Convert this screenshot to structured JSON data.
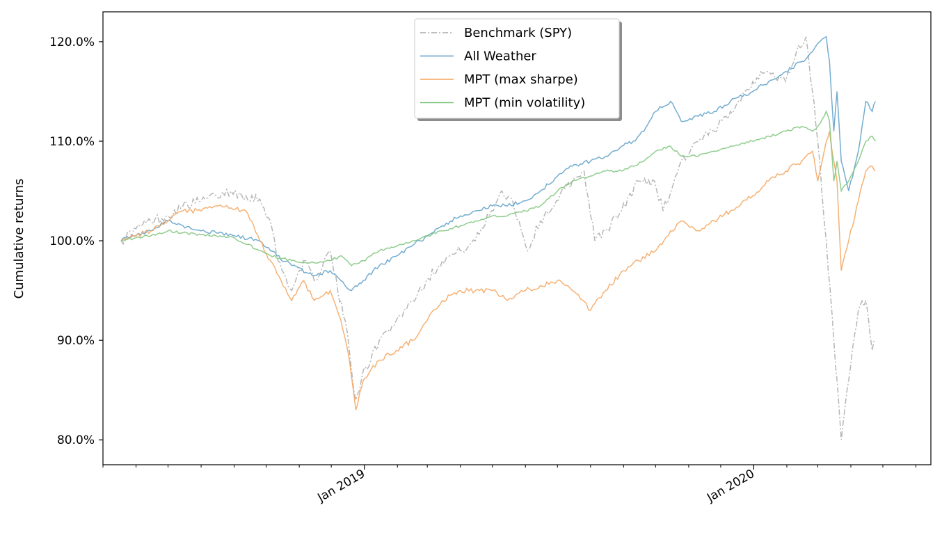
{
  "chart_data": {
    "type": "line",
    "title": "",
    "xlabel": "",
    "ylabel": "Cumulative returns",
    "ylim": [
      0.775,
      1.23
    ],
    "xlim": [
      "2018-05-01",
      "2020-06-15"
    ],
    "y_ticks": [
      0.8,
      0.9,
      1.0,
      1.1,
      1.2
    ],
    "y_tick_labels": [
      "80.0%",
      "90.0%",
      "100.0%",
      "110.0%",
      "120.0%"
    ],
    "x_ticks": [
      {
        "date": "2019-01-01",
        "label": "Jan 2019"
      },
      {
        "date": "2020-01-01",
        "label": "Jan 2020"
      }
    ],
    "x_minor_ticks": [
      "2018-05-01",
      "2018-06-01",
      "2018-07-01",
      "2018-08-01",
      "2018-09-01",
      "2018-10-01",
      "2018-11-01",
      "2018-12-01",
      "2019-02-01",
      "2019-03-01",
      "2019-04-01",
      "2019-05-01",
      "2019-06-01",
      "2019-07-01",
      "2019-08-01",
      "2019-09-01",
      "2019-10-01",
      "2019-11-01",
      "2019-12-01",
      "2020-02-01",
      "2020-03-01",
      "2020-04-01",
      "2020-05-01",
      "2020-06-01"
    ],
    "grid": false,
    "legend_position": "top-center",
    "series": [
      {
        "name": "Benchmark (SPY)",
        "color": "#a9a9a9",
        "style": "dashdot",
        "points": [
          [
            "2018-05-18",
            1.0
          ],
          [
            "2018-06-01",
            1.012
          ],
          [
            "2018-06-15",
            1.02
          ],
          [
            "2018-07-01",
            1.025
          ],
          [
            "2018-07-15",
            1.035
          ],
          [
            "2018-08-01",
            1.04
          ],
          [
            "2018-08-15",
            1.045
          ],
          [
            "2018-08-29",
            1.05
          ],
          [
            "2018-09-12",
            1.045
          ],
          [
            "2018-09-25",
            1.042
          ],
          [
            "2018-10-05",
            1.02
          ],
          [
            "2018-10-12",
            0.98
          ],
          [
            "2018-10-25",
            0.95
          ],
          [
            "2018-11-05",
            0.98
          ],
          [
            "2018-11-15",
            0.96
          ],
          [
            "2018-11-30",
            0.99
          ],
          [
            "2018-12-07",
            0.95
          ],
          [
            "2018-12-14",
            0.92
          ],
          [
            "2018-12-20",
            0.87
          ],
          [
            "2018-12-24",
            0.84
          ],
          [
            "2018-12-31",
            0.87
          ],
          [
            "2019-01-07",
            0.88
          ],
          [
            "2019-01-15",
            0.9
          ],
          [
            "2019-01-31",
            0.92
          ],
          [
            "2019-02-15",
            0.94
          ],
          [
            "2019-02-28",
            0.96
          ],
          [
            "2019-03-15",
            0.98
          ],
          [
            "2019-04-01",
            0.99
          ],
          [
            "2019-04-15",
            1.0
          ],
          [
            "2019-04-30",
            1.03
          ],
          [
            "2019-05-10",
            1.05
          ],
          [
            "2019-05-20",
            1.04
          ],
          [
            "2019-06-03",
            0.99
          ],
          [
            "2019-06-15",
            1.02
          ],
          [
            "2019-06-30",
            1.04
          ],
          [
            "2019-07-15",
            1.06
          ],
          [
            "2019-07-26",
            1.07
          ],
          [
            "2019-08-05",
            1.0
          ],
          [
            "2019-08-15",
            1.01
          ],
          [
            "2019-08-30",
            1.03
          ],
          [
            "2019-09-15",
            1.06
          ],
          [
            "2019-09-30",
            1.06
          ],
          [
            "2019-10-08",
            1.03
          ],
          [
            "2019-10-25",
            1.08
          ],
          [
            "2019-11-10",
            1.1
          ],
          [
            "2019-11-25",
            1.11
          ],
          [
            "2019-12-10",
            1.13
          ],
          [
            "2019-12-31",
            1.16
          ],
          [
            "2020-01-15",
            1.17
          ],
          [
            "2020-01-31",
            1.16
          ],
          [
            "2020-02-10",
            1.19
          ],
          [
            "2020-02-19",
            1.205
          ],
          [
            "2020-02-25",
            1.15
          ],
          [
            "2020-03-01",
            1.1
          ],
          [
            "2020-03-09",
            1.0
          ],
          [
            "2020-03-16",
            0.9
          ],
          [
            "2020-03-23",
            0.8
          ],
          [
            "2020-03-30",
            0.86
          ],
          [
            "2020-04-08",
            0.93
          ],
          [
            "2020-04-15",
            0.94
          ],
          [
            "2020-04-21",
            0.89
          ],
          [
            "2020-04-24",
            0.9
          ]
        ]
      },
      {
        "name": "All Weather",
        "color": "#5a9ec8",
        "style": "solid",
        "points": [
          [
            "2018-05-18",
            1.0
          ],
          [
            "2018-06-01",
            1.005
          ],
          [
            "2018-06-15",
            1.01
          ],
          [
            "2018-07-01",
            1.02
          ],
          [
            "2018-07-15",
            1.015
          ],
          [
            "2018-08-01",
            1.01
          ],
          [
            "2018-08-15",
            1.008
          ],
          [
            "2018-09-01",
            1.005
          ],
          [
            "2018-09-25",
            1.0
          ],
          [
            "2018-10-05",
            0.99
          ],
          [
            "2018-10-25",
            0.975
          ],
          [
            "2018-11-15",
            0.965
          ],
          [
            "2018-11-30",
            0.97
          ],
          [
            "2018-12-10",
            0.96
          ],
          [
            "2018-12-20",
            0.95
          ],
          [
            "2018-12-31",
            0.96
          ],
          [
            "2019-01-15",
            0.975
          ],
          [
            "2019-02-01",
            0.985
          ],
          [
            "2019-02-15",
            0.995
          ],
          [
            "2019-03-01",
            1.005
          ],
          [
            "2019-03-15",
            1.015
          ],
          [
            "2019-04-01",
            1.025
          ],
          [
            "2019-04-15",
            1.03
          ],
          [
            "2019-05-01",
            1.035
          ],
          [
            "2019-05-15",
            1.035
          ],
          [
            "2019-06-01",
            1.04
          ],
          [
            "2019-06-15",
            1.05
          ],
          [
            "2019-07-01",
            1.065
          ],
          [
            "2019-07-15",
            1.075
          ],
          [
            "2019-08-01",
            1.08
          ],
          [
            "2019-08-15",
            1.085
          ],
          [
            "2019-08-30",
            1.095
          ],
          [
            "2019-09-10",
            1.1
          ],
          [
            "2019-09-20",
            1.11
          ],
          [
            "2019-10-01",
            1.13
          ],
          [
            "2019-10-15",
            1.14
          ],
          [
            "2019-10-25",
            1.12
          ],
          [
            "2019-11-10",
            1.125
          ],
          [
            "2019-11-25",
            1.13
          ],
          [
            "2019-12-10",
            1.14
          ],
          [
            "2019-12-31",
            1.15
          ],
          [
            "2020-01-15",
            1.16
          ],
          [
            "2020-01-31",
            1.17
          ],
          [
            "2020-02-15",
            1.18
          ],
          [
            "2020-02-25",
            1.19
          ],
          [
            "2020-03-03",
            1.2
          ],
          [
            "2020-03-09",
            1.205
          ],
          [
            "2020-03-12",
            1.18
          ],
          [
            "2020-03-16",
            1.11
          ],
          [
            "2020-03-19",
            1.15
          ],
          [
            "2020-03-23",
            1.08
          ],
          [
            "2020-03-30",
            1.05
          ],
          [
            "2020-04-08",
            1.09
          ],
          [
            "2020-04-15",
            1.14
          ],
          [
            "2020-04-21",
            1.13
          ],
          [
            "2020-04-24",
            1.14
          ]
        ]
      },
      {
        "name": "MPT (max sharpe)",
        "color": "#f5a35a",
        "style": "solid",
        "points": [
          [
            "2018-05-18",
            1.0
          ],
          [
            "2018-06-01",
            1.005
          ],
          [
            "2018-06-15",
            1.01
          ],
          [
            "2018-07-01",
            1.02
          ],
          [
            "2018-07-15",
            1.03
          ],
          [
            "2018-08-01",
            1.03
          ],
          [
            "2018-08-15",
            1.035
          ],
          [
            "2018-08-29",
            1.033
          ],
          [
            "2018-09-12",
            1.03
          ],
          [
            "2018-09-25",
            1.0
          ],
          [
            "2018-10-05",
            0.98
          ],
          [
            "2018-10-15",
            0.96
          ],
          [
            "2018-10-25",
            0.94
          ],
          [
            "2018-11-05",
            0.96
          ],
          [
            "2018-11-15",
            0.94
          ],
          [
            "2018-11-30",
            0.95
          ],
          [
            "2018-12-10",
            0.92
          ],
          [
            "2018-12-18",
            0.88
          ],
          [
            "2018-12-24",
            0.83
          ],
          [
            "2018-12-31",
            0.86
          ],
          [
            "2019-01-07",
            0.87
          ],
          [
            "2019-01-15",
            0.88
          ],
          [
            "2019-01-31",
            0.89
          ],
          [
            "2019-02-15",
            0.9
          ],
          [
            "2019-03-01",
            0.92
          ],
          [
            "2019-03-15",
            0.94
          ],
          [
            "2019-04-01",
            0.95
          ],
          [
            "2019-04-15",
            0.95
          ],
          [
            "2019-05-01",
            0.95
          ],
          [
            "2019-05-15",
            0.94
          ],
          [
            "2019-06-01",
            0.95
          ],
          [
            "2019-06-15",
            0.955
          ],
          [
            "2019-07-01",
            0.96
          ],
          [
            "2019-07-15",
            0.95
          ],
          [
            "2019-08-01",
            0.93
          ],
          [
            "2019-08-15",
            0.95
          ],
          [
            "2019-09-01",
            0.97
          ],
          [
            "2019-09-15",
            0.98
          ],
          [
            "2019-10-01",
            0.99
          ],
          [
            "2019-10-15",
            1.01
          ],
          [
            "2019-10-25",
            1.02
          ],
          [
            "2019-11-10",
            1.01
          ],
          [
            "2019-11-25",
            1.02
          ],
          [
            "2019-12-10",
            1.03
          ],
          [
            "2019-12-31",
            1.045
          ],
          [
            "2020-01-15",
            1.06
          ],
          [
            "2020-01-31",
            1.07
          ],
          [
            "2020-02-15",
            1.08
          ],
          [
            "2020-02-25",
            1.09
          ],
          [
            "2020-03-01",
            1.06
          ],
          [
            "2020-03-09",
            1.1
          ],
          [
            "2020-03-12",
            1.11
          ],
          [
            "2020-03-16",
            1.08
          ],
          [
            "2020-03-19",
            1.06
          ],
          [
            "2020-03-23",
            0.97
          ],
          [
            "2020-03-30",
            1.0
          ],
          [
            "2020-04-08",
            1.04
          ],
          [
            "2020-04-15",
            1.07
          ],
          [
            "2020-04-21",
            1.075
          ],
          [
            "2020-04-24",
            1.07
          ]
        ]
      },
      {
        "name": "MPT (min volatility)",
        "color": "#7cc47a",
        "style": "solid",
        "points": [
          [
            "2018-05-18",
            1.0
          ],
          [
            "2018-06-01",
            1.003
          ],
          [
            "2018-06-15",
            1.005
          ],
          [
            "2018-07-01",
            1.01
          ],
          [
            "2018-07-15",
            1.008
          ],
          [
            "2018-08-01",
            1.006
          ],
          [
            "2018-08-15",
            1.005
          ],
          [
            "2018-09-01",
            1.003
          ],
          [
            "2018-09-25",
            0.99
          ],
          [
            "2018-10-05",
            0.985
          ],
          [
            "2018-10-25",
            0.98
          ],
          [
            "2018-11-15",
            0.978
          ],
          [
            "2018-11-30",
            0.98
          ],
          [
            "2018-12-10",
            0.985
          ],
          [
            "2018-12-20",
            0.975
          ],
          [
            "2018-12-31",
            0.98
          ],
          [
            "2019-01-15",
            0.99
          ],
          [
            "2019-02-01",
            0.995
          ],
          [
            "2019-02-15",
            1.0
          ],
          [
            "2019-03-01",
            1.005
          ],
          [
            "2019-03-15",
            1.01
          ],
          [
            "2019-04-01",
            1.015
          ],
          [
            "2019-04-15",
            1.02
          ],
          [
            "2019-05-01",
            1.025
          ],
          [
            "2019-05-15",
            1.025
          ],
          [
            "2019-06-01",
            1.03
          ],
          [
            "2019-06-15",
            1.035
          ],
          [
            "2019-07-01",
            1.05
          ],
          [
            "2019-07-15",
            1.06
          ],
          [
            "2019-08-01",
            1.065
          ],
          [
            "2019-08-15",
            1.07
          ],
          [
            "2019-08-30",
            1.07
          ],
          [
            "2019-09-10",
            1.075
          ],
          [
            "2019-09-20",
            1.08
          ],
          [
            "2019-10-01",
            1.09
          ],
          [
            "2019-10-15",
            1.095
          ],
          [
            "2019-10-25",
            1.085
          ],
          [
            "2019-11-10",
            1.085
          ],
          [
            "2019-11-25",
            1.09
          ],
          [
            "2019-12-10",
            1.095
          ],
          [
            "2019-12-31",
            1.1
          ],
          [
            "2020-01-15",
            1.105
          ],
          [
            "2020-01-31",
            1.11
          ],
          [
            "2020-02-15",
            1.115
          ],
          [
            "2020-02-25",
            1.11
          ],
          [
            "2020-03-01",
            1.115
          ],
          [
            "2020-03-09",
            1.13
          ],
          [
            "2020-03-12",
            1.12
          ],
          [
            "2020-03-16",
            1.06
          ],
          [
            "2020-03-19",
            1.08
          ],
          [
            "2020-03-23",
            1.05
          ],
          [
            "2020-03-30",
            1.06
          ],
          [
            "2020-04-08",
            1.08
          ],
          [
            "2020-04-15",
            1.1
          ],
          [
            "2020-04-21",
            1.105
          ],
          [
            "2020-04-24",
            1.1
          ]
        ]
      }
    ]
  }
}
